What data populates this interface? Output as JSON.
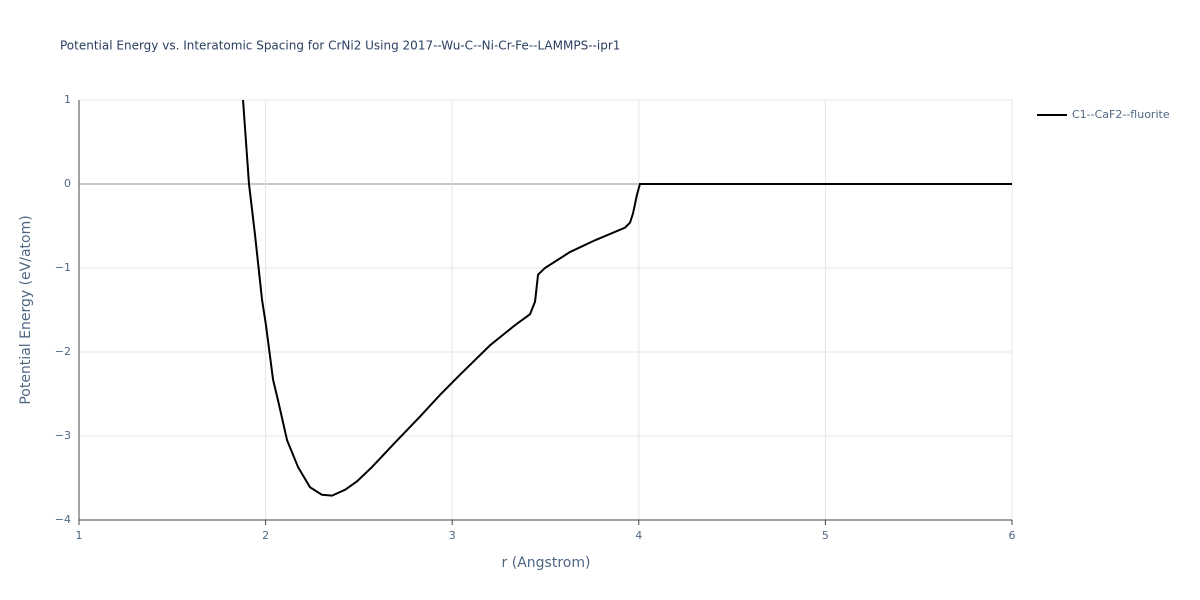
{
  "chart_data": {
    "type": "line",
    "title": "Potential Energy vs. Interatomic Spacing for CrNi2 Using 2017--Wu-C--Ni-Cr-Fe--LAMMPS--ipr1",
    "x_label": "r (Angstrom)",
    "y_label": "Potential Energy (eV/atom)",
    "xlim": [
      1,
      6
    ],
    "ylim": [
      -4,
      1
    ],
    "xticks": [
      1,
      2,
      3,
      4,
      5,
      6
    ],
    "yticks": [
      {
        "value": -4,
        "label": "−4"
      },
      {
        "value": -3,
        "label": "−3"
      },
      {
        "value": -2,
        "label": "−2"
      },
      {
        "value": -1,
        "label": "−1"
      },
      0,
      1
    ],
    "grid": true,
    "legend": "right",
    "x": [
      1.879,
      1.911,
      1.943,
      1.981,
      2.002,
      2.04,
      2.066,
      2.115,
      2.174,
      2.238,
      2.302,
      2.356,
      2.426,
      2.49,
      2.57,
      2.693,
      2.827,
      2.935,
      3.042,
      3.203,
      3.337,
      3.417,
      3.444,
      3.46,
      3.497,
      3.631,
      3.765,
      3.926,
      3.953,
      3.969,
      3.99,
      4.006,
      6
    ],
    "series": [
      {
        "name": "C1--CaF2--fluorite",
        "color": "#000000",
        "values": [
          1,
          0,
          -0.6,
          -1.38,
          -1.68,
          -2.33,
          -2.57,
          -3.05,
          -3.37,
          -3.61,
          -3.7,
          -3.71,
          -3.64,
          -3.54,
          -3.37,
          -3.08,
          -2.77,
          -2.51,
          -2.27,
          -1.92,
          -1.68,
          -1.55,
          -1.4,
          -1.08,
          -1.0,
          -0.81,
          -0.67,
          -0.52,
          -0.46,
          -0.35,
          -0.13,
          0,
          0
        ]
      }
    ]
  }
}
